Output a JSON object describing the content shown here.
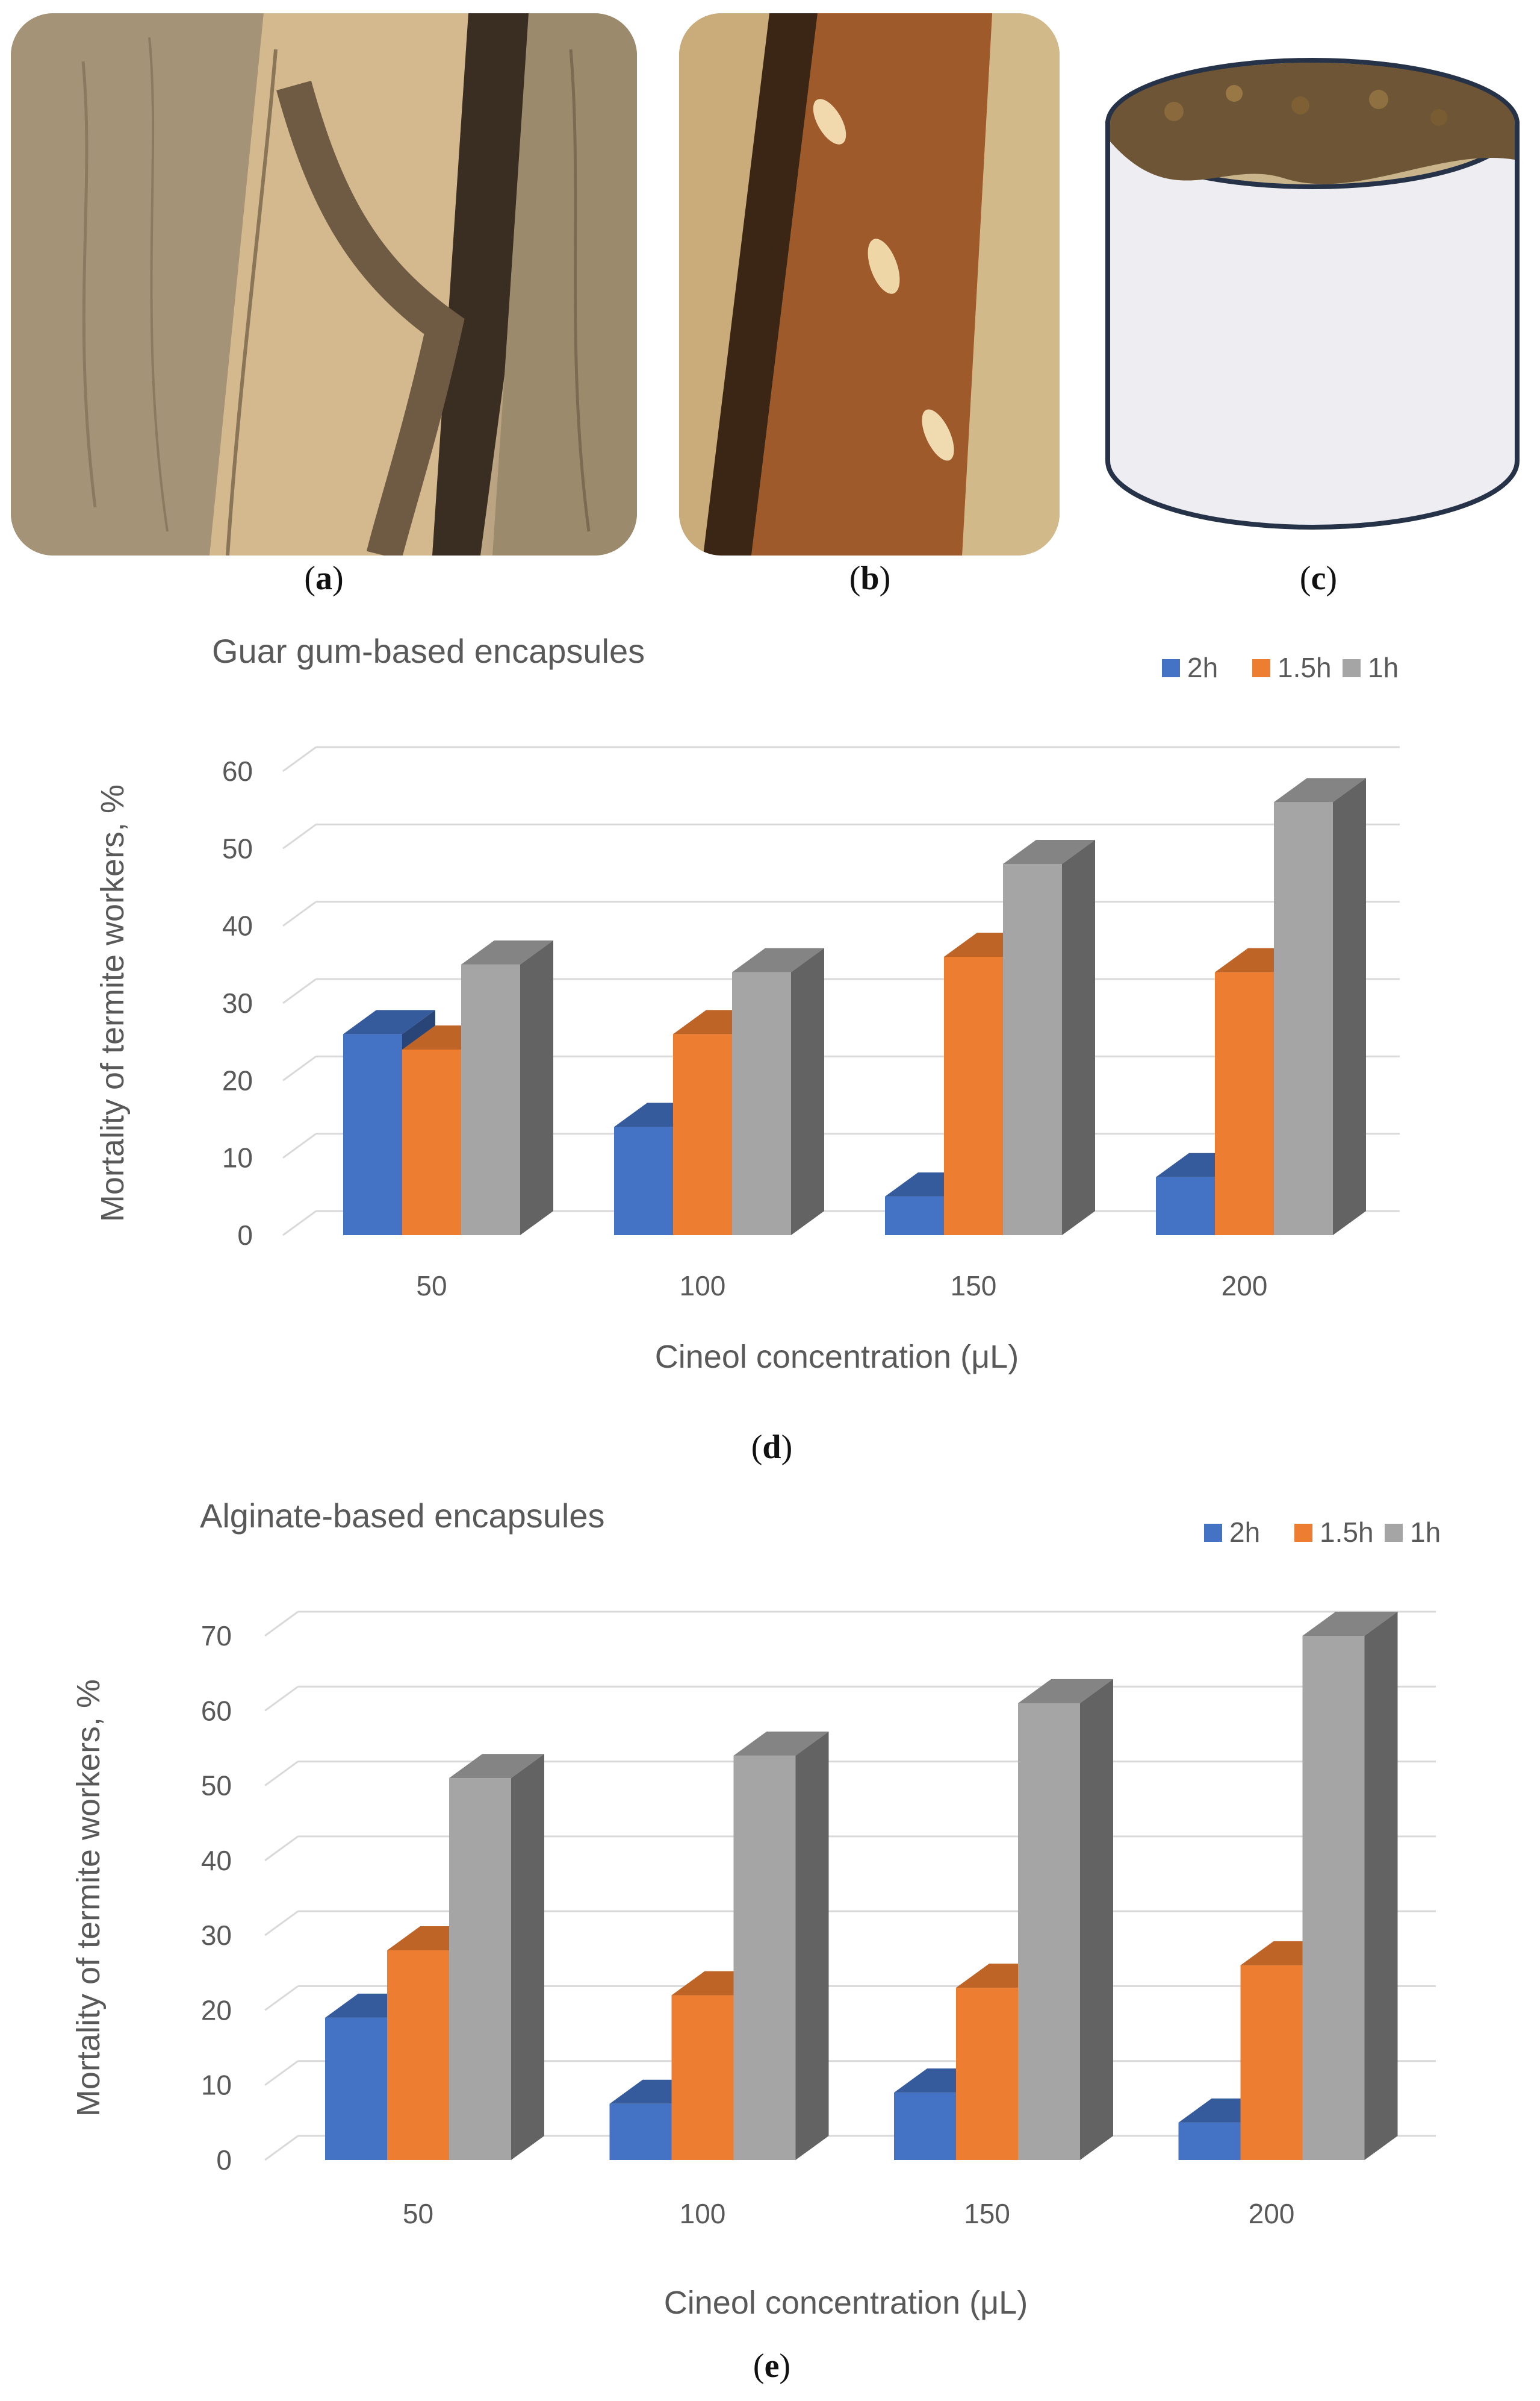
{
  "panels": [
    {
      "letter": "a",
      "open": "(",
      "close": ")"
    },
    {
      "letter": "b",
      "open": "(",
      "close": ")"
    },
    {
      "letter": "c",
      "open": "(",
      "close": ")"
    },
    {
      "letter": "d",
      "open": "(",
      "close": ")"
    },
    {
      "letter": "e",
      "open": "(",
      "close": ")"
    }
  ],
  "colors": {
    "series_2h": "#4472c4",
    "series_15h": "#ed7d31",
    "series_1h": "#a5a5a5",
    "grid": "#d9d9d9",
    "axis_text": "#595959"
  },
  "chart_data": [
    {
      "type": "bar",
      "title": "Guar gum-based encapsules",
      "xlabel": "Cineol concentration (μL)",
      "ylabel": "Mortality of termite workers, %",
      "categories": [
        "50",
        "100",
        "150",
        "200"
      ],
      "ylim": [
        0,
        60
      ],
      "yticks": [
        "0",
        "10",
        "20",
        "30",
        "40",
        "50",
        "60"
      ],
      "grid": true,
      "legend_position": "top-right",
      "series": [
        {
          "name": "2h",
          "values": [
            26,
            14,
            5,
            7.5
          ]
        },
        {
          "name": "1.5h",
          "values": [
            24,
            26,
            36,
            34
          ]
        },
        {
          "name": "1h",
          "values": [
            35,
            34,
            48,
            56
          ]
        }
      ]
    },
    {
      "type": "bar",
      "title": "Alginate-based encapsules",
      "xlabel": "Cineol concentration (μL)",
      "ylabel": "Mortality of termite workers, %",
      "categories": [
        "50",
        "100",
        "150",
        "200"
      ],
      "ylim": [
        0,
        70
      ],
      "yticks": [
        "0",
        "10",
        "20",
        "30",
        "40",
        "50",
        "60",
        "70"
      ],
      "grid": true,
      "legend_position": "top-right",
      "series": [
        {
          "name": "2h",
          "values": [
            19,
            7.5,
            9,
            5
          ]
        },
        {
          "name": "1.5h",
          "values": [
            28,
            22,
            23,
            26
          ]
        },
        {
          "name": "1h",
          "values": [
            51,
            54,
            61,
            70
          ]
        }
      ]
    }
  ]
}
